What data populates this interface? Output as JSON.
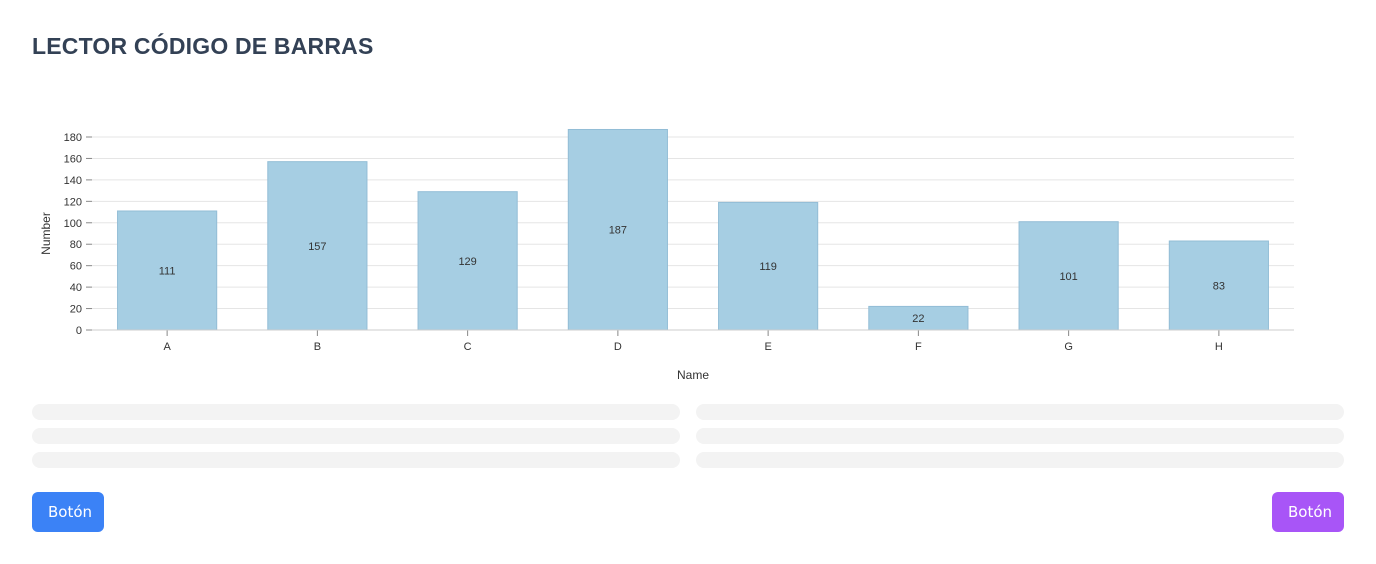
{
  "header": {
    "title": "LECTOR CÓDIGO DE BARRAS"
  },
  "chart_data": {
    "type": "bar",
    "categories": [
      "A",
      "B",
      "C",
      "D",
      "E",
      "F",
      "G",
      "H"
    ],
    "values": [
      111,
      157,
      129,
      187,
      119,
      22,
      101,
      83
    ],
    "title": "",
    "xlabel": "Name",
    "ylabel": "Number",
    "ylim": [
      0,
      180
    ],
    "yticks": [
      0,
      20,
      40,
      60,
      80,
      100,
      120,
      140,
      160,
      180
    ],
    "grid": true,
    "data_labels": true,
    "bar_color": "#a6cee3"
  },
  "skeleton_rows": 3,
  "buttons": {
    "left_label": "Botón",
    "right_label": "Botón",
    "left_color": "#3b82f6",
    "right_color": "#a855f7"
  }
}
